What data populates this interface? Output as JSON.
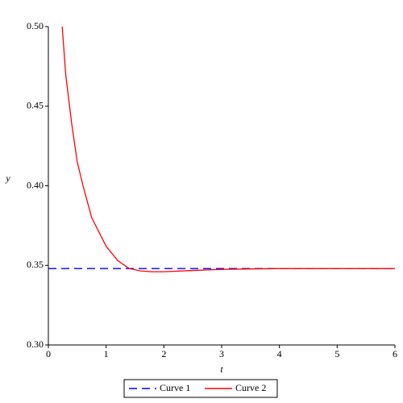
{
  "chart_data": {
    "type": "line",
    "x_label": "t",
    "y_label": "y",
    "xlim": [
      0,
      6
    ],
    "ylim": [
      0.3,
      0.5
    ],
    "xticks": [
      0,
      1,
      2,
      3,
      4,
      5,
      6
    ],
    "yticks": [
      {
        "value": 0.3,
        "label": "0.30"
      },
      0.35,
      {
        "value": 0.4,
        "label": "0.40"
      },
      0.45,
      {
        "value": 0.5,
        "label": "0.50"
      }
    ],
    "legend": "bottom",
    "series": [
      {
        "name": "Curve 1",
        "color": "#0000ff",
        "dash": true,
        "x": [
          0,
          6
        ],
        "values": [
          0.348,
          0.348
        ]
      },
      {
        "name": "Curve 2",
        "color": "#ff0000",
        "dash": false,
        "x": [
          0.24,
          0.3,
          0.4,
          0.5,
          0.6,
          0.75,
          1.0,
          1.2,
          1.4,
          1.6,
          1.8,
          2.0,
          2.5,
          3,
          4,
          5,
          6
        ],
        "values": [
          0.5,
          0.47,
          0.44,
          0.415,
          0.4,
          0.38,
          0.362,
          0.353,
          0.348,
          0.3465,
          0.346,
          0.346,
          0.3468,
          0.3475,
          0.348,
          0.348,
          0.348
        ]
      }
    ]
  }
}
